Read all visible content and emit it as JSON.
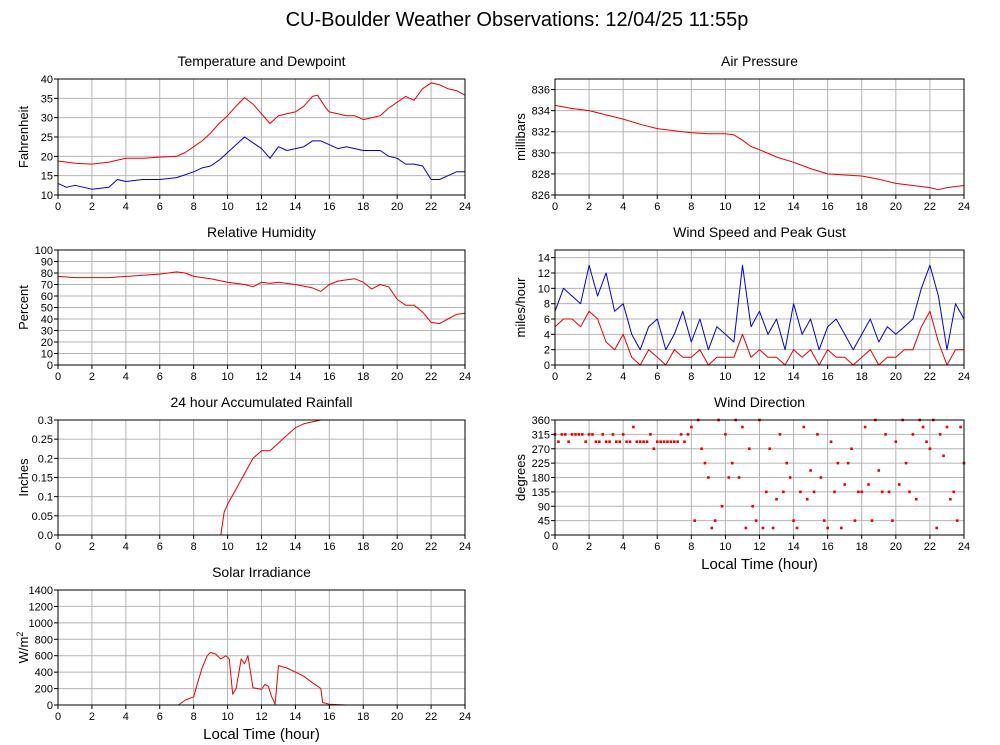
{
  "page": {
    "title": "CU-Boulder Weather Observations: 12/04/25 11:55p"
  },
  "colors": {
    "red": "#ee0000",
    "blue": "#0000dd",
    "grid": "#b4b4b4"
  },
  "chart_data": [
    {
      "id": "temperature",
      "type": "line",
      "title": "Temperature and Dewpoint",
      "xlabel": "",
      "ylabel": "Fahrenheit",
      "xlim": [
        0,
        24
      ],
      "ylim": [
        10,
        40
      ],
      "xticks": [
        0,
        2,
        4,
        6,
        8,
        10,
        12,
        14,
        16,
        18,
        20,
        22,
        24
      ],
      "yticks": [
        10,
        15,
        20,
        25,
        30,
        35,
        40
      ],
      "grid": true,
      "series": [
        {
          "color": "#ee0000",
          "x": [
            0,
            1,
            2,
            3,
            4,
            5,
            6,
            7,
            7.5,
            8,
            8.5,
            9,
            9.5,
            10,
            10.5,
            11,
            11.5,
            12,
            12.5,
            13,
            13.5,
            14,
            14.5,
            15,
            15.3,
            15.8,
            16,
            16.5,
            17,
            17.5,
            18,
            18.5,
            19,
            19.5,
            20,
            20.5,
            21,
            21.5,
            22,
            22.5,
            23,
            23.5,
            24
          ],
          "y": [
            18.8,
            18.2,
            18,
            18.5,
            19.5,
            19.5,
            19.8,
            20,
            21,
            22.5,
            24,
            26,
            28.5,
            30.5,
            33,
            35.2,
            33.5,
            31,
            28.5,
            30.5,
            31,
            31.5,
            33,
            35.5,
            35.8,
            32.5,
            31.5,
            31,
            30.5,
            30.5,
            29.5,
            30,
            30.5,
            32.5,
            34,
            35.5,
            34.5,
            37.5,
            39,
            38.5,
            37.5,
            37,
            35.8
          ]
        },
        {
          "color": "#0000dd",
          "x": [
            0,
            0.5,
            1,
            2,
            3,
            3.5,
            4,
            5,
            6,
            7,
            8,
            8.5,
            9,
            9.5,
            10,
            10.5,
            11,
            11.5,
            12,
            12.5,
            13,
            13.5,
            14,
            14.5,
            15,
            15.5,
            16,
            16.5,
            17,
            18,
            19,
            19.5,
            20,
            20.5,
            21,
            21.5,
            22,
            22.5,
            23,
            23.5,
            24
          ],
          "y": [
            13,
            12,
            12.5,
            11.5,
            12,
            14,
            13.5,
            14,
            14,
            14.5,
            16,
            17,
            17.5,
            19,
            21,
            23,
            25,
            23.5,
            22,
            19.5,
            22.5,
            21.5,
            22,
            22.5,
            24,
            24,
            23,
            22,
            22.5,
            21.5,
            21.5,
            20,
            19.5,
            18,
            18,
            17.5,
            14,
            14,
            15,
            16,
            16
          ]
        }
      ]
    },
    {
      "id": "pressure",
      "type": "line",
      "title": "Air Pressure",
      "xlabel": "",
      "ylabel": "millibars",
      "xlim": [
        0,
        24
      ],
      "ylim": [
        826,
        837
      ],
      "xticks": [
        0,
        2,
        4,
        6,
        8,
        10,
        12,
        14,
        16,
        18,
        20,
        22,
        24
      ],
      "yticks": [
        826,
        828,
        830,
        832,
        834,
        836
      ],
      "grid": true,
      "series": [
        {
          "color": "#ee0000",
          "x": [
            0,
            1,
            2,
            3,
            4,
            5,
            6,
            7,
            8,
            9,
            10,
            10.5,
            11,
            11.5,
            12,
            13,
            14,
            15,
            16,
            17,
            18,
            19,
            20,
            21,
            22,
            22.5,
            23,
            24
          ],
          "y": [
            834.5,
            834.2,
            834.0,
            833.6,
            833.2,
            832.7,
            832.3,
            832.1,
            831.9,
            831.8,
            831.8,
            831.7,
            831.2,
            830.6,
            830.3,
            829.6,
            829.1,
            828.5,
            828.0,
            827.9,
            827.8,
            827.5,
            827.1,
            826.9,
            826.7,
            826.5,
            826.7,
            826.9
          ]
        }
      ]
    },
    {
      "id": "humidity",
      "type": "line",
      "title": "Relative Humidity",
      "xlabel": "",
      "ylabel": "Percent",
      "xlim": [
        0,
        24
      ],
      "ylim": [
        0,
        100
      ],
      "xticks": [
        0,
        2,
        4,
        6,
        8,
        10,
        12,
        14,
        16,
        18,
        20,
        22,
        24
      ],
      "yticks": [
        0,
        10,
        20,
        30,
        40,
        50,
        60,
        70,
        80,
        90,
        100
      ],
      "grid": true,
      "series": [
        {
          "color": "#ee0000",
          "x": [
            0,
            1,
            2,
            3,
            4,
            5,
            6,
            7,
            7.5,
            8,
            9,
            10,
            10.5,
            11,
            11.5,
            12,
            12.5,
            13,
            14,
            15,
            15.5,
            16,
            16.5,
            17,
            17.5,
            18,
            18.5,
            19,
            19.5,
            20,
            20.5,
            21,
            21.5,
            22,
            22.5,
            23,
            23.5,
            24
          ],
          "y": [
            77,
            76,
            76,
            76,
            77,
            78,
            79,
            81,
            80,
            77,
            75,
            72,
            71,
            70,
            68,
            72,
            71,
            72,
            70,
            67,
            64,
            70,
            73,
            74,
            75,
            72,
            66,
            70,
            68,
            57,
            52,
            52,
            46,
            37,
            36,
            40,
            44,
            45
          ]
        }
      ]
    },
    {
      "id": "wind-speed",
      "type": "line",
      "title": "Wind Speed and Peak Gust",
      "xlabel": "",
      "ylabel": "miles/hour",
      "xlim": [
        0,
        24
      ],
      "ylim": [
        0,
        15
      ],
      "xticks": [
        0,
        2,
        4,
        6,
        8,
        10,
        12,
        14,
        16,
        18,
        20,
        22,
        24
      ],
      "yticks": [
        0,
        2,
        4,
        6,
        8,
        10,
        12,
        14
      ],
      "grid": true,
      "series": [
        {
          "color": "#0000dd",
          "x": [
            0,
            0.5,
            1,
            1.5,
            2,
            2.5,
            3,
            3.5,
            4,
            4.5,
            5,
            5.5,
            6,
            6.5,
            7,
            7.5,
            8,
            8.5,
            9,
            9.5,
            10,
            10.5,
            11,
            11.5,
            12,
            12.5,
            13,
            13.5,
            14,
            14.5,
            15,
            15.5,
            16,
            16.5,
            17,
            17.5,
            18,
            18.5,
            19,
            19.5,
            20,
            20.5,
            21,
            21.5,
            22,
            22.5,
            23,
            23.5,
            24
          ],
          "y": [
            7,
            10,
            9,
            8,
            13,
            9,
            12,
            7,
            8,
            4,
            2,
            5,
            6,
            2,
            4,
            7,
            3,
            6,
            2,
            5,
            4,
            3,
            13,
            5,
            7,
            4,
            6,
            2,
            8,
            4,
            6,
            2,
            5,
            6,
            4,
            2,
            4,
            6,
            3,
            5,
            4,
            5,
            6,
            10,
            13,
            9,
            2,
            8,
            6
          ]
        },
        {
          "color": "#ee0000",
          "x": [
            0,
            0.5,
            1,
            1.5,
            2,
            2.5,
            3,
            3.5,
            4,
            4.5,
            5,
            5.5,
            6,
            6.5,
            7,
            7.5,
            8,
            8.5,
            9,
            9.5,
            10,
            10.5,
            11,
            11.5,
            12,
            12.5,
            13,
            13.5,
            14,
            14.5,
            15,
            15.5,
            16,
            16.5,
            17,
            17.5,
            18,
            18.5,
            19,
            19.5,
            20,
            20.5,
            21,
            21.5,
            22,
            22.5,
            23,
            23.5,
            24
          ],
          "y": [
            5,
            6,
            6,
            5,
            7,
            6,
            3,
            2,
            4,
            1,
            0,
            2,
            1,
            0,
            2,
            1,
            1,
            2,
            0,
            1,
            1,
            1,
            4,
            1,
            2,
            1,
            1,
            0,
            2,
            1,
            2,
            0,
            2,
            1,
            1,
            0,
            1,
            2,
            0,
            1,
            1,
            2,
            2,
            5,
            7,
            3,
            0,
            2,
            2
          ]
        }
      ]
    },
    {
      "id": "rainfall",
      "type": "line",
      "title": "24 hour Accumulated Rainfall",
      "xlabel": "",
      "ylabel": "Inches",
      "xlim": [
        0,
        24
      ],
      "ylim": [
        0,
        0.3
      ],
      "xticks": [
        0,
        2,
        4,
        6,
        8,
        10,
        12,
        14,
        16,
        18,
        20,
        22,
        24
      ],
      "yticks": [
        0.0,
        0.05,
        0.1,
        0.15,
        0.2,
        0.25,
        0.3
      ],
      "yticklabels": [
        "0.0",
        "0.05",
        "0.1",
        "0.15",
        "0.2",
        "0.25",
        "0.3"
      ],
      "grid": true,
      "series": [
        {
          "color": "#ee0000",
          "x": [
            0,
            9.6,
            9.8,
            10,
            10.5,
            11,
            11.5,
            12,
            12.5,
            13,
            13.5,
            14,
            14.5,
            15,
            15.5,
            24
          ],
          "y": [
            0,
            0,
            0.06,
            0.08,
            0.12,
            0.16,
            0.2,
            0.22,
            0.22,
            0.24,
            0.26,
            0.28,
            0.29,
            0.295,
            0.3,
            0.3
          ]
        }
      ]
    },
    {
      "id": "wind-direction",
      "type": "scatter",
      "title": "Wind Direction",
      "xlabel": "Local Time (hour)",
      "ylabel": "degrees",
      "xlim": [
        0,
        24
      ],
      "ylim": [
        0,
        360
      ],
      "xticks": [
        0,
        2,
        4,
        6,
        8,
        10,
        12,
        14,
        16,
        18,
        20,
        22,
        24
      ],
      "yticks": [
        0,
        45,
        90,
        135,
        180,
        225,
        270,
        315,
        360
      ],
      "grid": true,
      "series": [
        {
          "color": "#ee0000",
          "x": [
            0,
            0.2,
            0.4,
            0.6,
            0.8,
            1,
            1.2,
            1.4,
            1.6,
            1.8,
            2,
            2.2,
            2.4,
            2.6,
            2.8,
            3,
            3.2,
            3.4,
            3.6,
            3.8,
            4,
            4.2,
            4.4,
            4.6,
            4.8,
            5,
            5.2,
            5.4,
            5.6,
            5.8,
            6,
            6.2,
            6.4,
            6.6,
            6.8,
            7,
            7.2,
            7.4,
            7.6,
            7.8,
            8,
            8.2,
            8.4,
            8.6,
            8.8,
            9,
            9.2,
            9.4,
            9.6,
            9.8,
            10,
            10.2,
            10.4,
            10.6,
            10.8,
            11,
            11.2,
            11.4,
            11.6,
            11.8,
            12,
            12.2,
            12.4,
            12.6,
            12.8,
            13,
            13.2,
            13.4,
            13.6,
            13.8,
            14,
            14.2,
            14.4,
            14.6,
            14.8,
            15,
            15.2,
            15.4,
            15.6,
            15.8,
            16,
            16.2,
            16.4,
            16.6,
            16.8,
            17,
            17.2,
            17.4,
            17.6,
            17.8,
            18,
            18.2,
            18.4,
            18.6,
            18.8,
            19,
            19.2,
            19.4,
            19.6,
            19.8,
            20,
            20.2,
            20.4,
            20.6,
            20.8,
            21,
            21.2,
            21.4,
            21.6,
            21.8,
            22,
            22.2,
            22.4,
            22.6,
            22.8,
            23,
            23.2,
            23.4,
            23.6,
            23.8,
            24
          ],
          "y": [
            315,
            292,
            315,
            315,
            292,
            315,
            315,
            315,
            315,
            292,
            315,
            315,
            292,
            292,
            315,
            292,
            292,
            315,
            292,
            292,
            315,
            292,
            292,
            338,
            292,
            292,
            292,
            292,
            315,
            270,
            292,
            292,
            292,
            292,
            292,
            292,
            292,
            315,
            292,
            315,
            338,
            45,
            360,
            270,
            225,
            180,
            22,
            45,
            360,
            90,
            315,
            180,
            225,
            360,
            180,
            338,
            22,
            270,
            90,
            45,
            360,
            22,
            135,
            270,
            22,
            112,
            315,
            135,
            225,
            180,
            45,
            22,
            135,
            338,
            112,
            202,
            135,
            315,
            180,
            45,
            22,
            292,
            135,
            225,
            22,
            158,
            225,
            270,
            45,
            135,
            135,
            338,
            158,
            45,
            360,
            202,
            135,
            315,
            135,
            45,
            292,
            158,
            360,
            225,
            135,
            315,
            112,
            360,
            338,
            292,
            270,
            360,
            22,
            315,
            248,
            338,
            112,
            135,
            45,
            338,
            225
          ]
        }
      ]
    },
    {
      "id": "solar",
      "type": "line",
      "title": "Solar Irradiance",
      "xlabel": "Local Time (hour)",
      "ylabel": "W/m",
      "ylabel_sup": "2",
      "xlim": [
        0,
        24
      ],
      "ylim": [
        0,
        1400
      ],
      "xticks": [
        0,
        2,
        4,
        6,
        8,
        10,
        12,
        14,
        16,
        18,
        20,
        22,
        24
      ],
      "yticks": [
        0,
        200,
        400,
        600,
        800,
        1000,
        1200,
        1400
      ],
      "grid": true,
      "series": [
        {
          "color": "#ee0000",
          "x": [
            0,
            7.1,
            7.5,
            8,
            8.2,
            8.5,
            8.8,
            9,
            9.3,
            9.6,
            9.9,
            10.1,
            10.3,
            10.5,
            10.8,
            11,
            11.2,
            11.5,
            11.8,
            12,
            12.2,
            12.4,
            12.6,
            12.8,
            13,
            13.5,
            14,
            14.5,
            15,
            15.3,
            15.5,
            15.6,
            16,
            16.5,
            17,
            24
          ],
          "y": [
            0,
            0,
            60,
            100,
            250,
            450,
            600,
            640,
            620,
            560,
            600,
            560,
            130,
            200,
            560,
            500,
            600,
            210,
            200,
            190,
            250,
            230,
            100,
            10,
            480,
            450,
            400,
            350,
            270,
            230,
            200,
            30,
            10,
            5,
            0,
            0
          ]
        }
      ]
    }
  ]
}
